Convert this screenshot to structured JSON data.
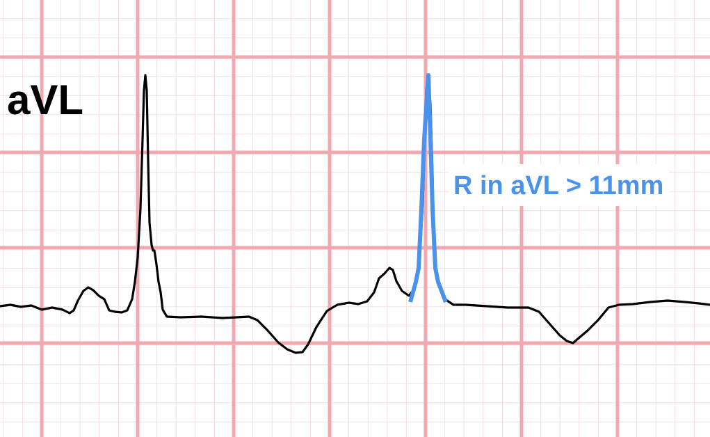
{
  "lead": {
    "label": "aVL"
  },
  "annotation": {
    "text": "R in aVL > 11mm"
  },
  "colors": {
    "trace": "#000000",
    "highlight": "#4a93ec",
    "annotation_text": "#4a93ec",
    "major_grid": "#f0a9b1",
    "minor_grid": "#f7dde0",
    "background": "#ffffff"
  },
  "ecg_strip": {
    "waveform": "qrs-complexes with upright R waves and inverted T waves",
    "beats": [
      {
        "component": "p-wave",
        "name": "beat-1"
      },
      {
        "component": "r-wave",
        "name": "beat-1"
      },
      {
        "component": "t-wave-inverted",
        "name": "beat-1"
      },
      {
        "component": "p-wave",
        "name": "beat-2"
      },
      {
        "component": "r-wave-highlighted",
        "name": "beat-2"
      },
      {
        "component": "t-wave-inverted",
        "name": "beat-2"
      }
    ]
  }
}
